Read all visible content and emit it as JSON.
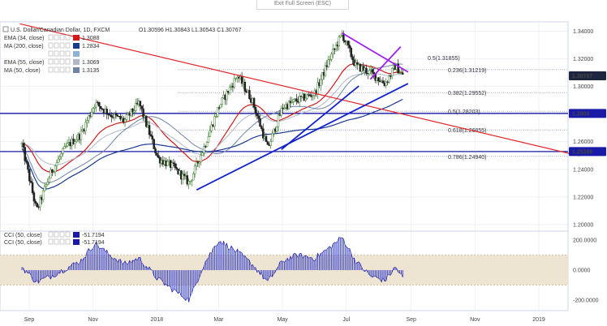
{
  "toolbar": {
    "exit_fullscreen_label": "Exit Full Screen (ESC)"
  },
  "header": {
    "symbol_title": "U.S. Dollar/Canadian Dollar, 1D, FXCM",
    "ohlc": "O1.30596  H1.30843  L1.30543  C1.30767"
  },
  "indicators": [
    {
      "label": "EMA (34, close)",
      "value": "1.3088",
      "color": "#d11a1a"
    },
    {
      "label": "MA (200, close)",
      "value": "1.2834",
      "color": "#1a3a8f"
    },
    {
      "label": "",
      "value": "",
      "color": "#8fb2d9"
    },
    {
      "label": "EMA (55, close)",
      "value": "1.3069",
      "color": "#b0b8c8"
    },
    {
      "label": "MA (50, close)",
      "value": "1.3135",
      "color": "#6e84a8"
    }
  ],
  "cci_legend": [
    {
      "label": "CCI (50, close)",
      "value": "-51.7194"
    },
    {
      "label": "CCI (50, close)",
      "value": "-51.7194"
    }
  ],
  "chart_data": {
    "type": "candlestick",
    "title": "U.S. Dollar/Canadian Dollar, 1D, FXCM",
    "x_ticks": [
      "Sep",
      "Nov",
      "2018",
      "Mar",
      "May",
      "Jul",
      "Sep",
      "Nov",
      "2019"
    ],
    "price_ticks": [
      1.34,
      1.32,
      1.3,
      1.28,
      1.26,
      1.24,
      1.22,
      1.2
    ],
    "price_ylim": [
      1.197,
      1.345
    ],
    "last_price": 1.30767,
    "horizontal_levels": [
      1.2805,
      1.25286
    ],
    "fibonacci": [
      {
        "label": "0.5(1.31855)",
        "value": 1.31855
      },
      {
        "label": "0.236(1.31219)",
        "value": 1.31219
      },
      {
        "label": "0.382(1.29552)",
        "value": 1.29552
      },
      {
        "label": "0.5(1.28203)",
        "value": 1.28203
      },
      {
        "label": "0.618(1.26855)",
        "value": 1.26855
      },
      {
        "label": "0.786(1.24940)",
        "value": 1.2494
      }
    ],
    "price_path": [
      [
        "Aug 25 2017",
        1.258
      ],
      [
        "Sep 8 2017",
        1.21
      ],
      [
        "Sep 22 2017",
        1.238
      ],
      [
        "Oct 6 2017",
        1.256
      ],
      [
        "Oct 20 2017",
        1.265
      ],
      [
        "Nov 3 2017",
        1.288
      ],
      [
        "Nov 17 2017",
        1.28
      ],
      [
        "Dec 1 2017",
        1.275
      ],
      [
        "Dec 15 2017",
        1.288
      ],
      [
        "Jan 2 2018",
        1.248
      ],
      [
        "Jan 16 2018",
        1.242
      ],
      [
        "Feb 1 2018",
        1.23
      ],
      [
        "Feb 15 2018",
        1.256
      ],
      [
        "Mar 1 2018",
        1.285
      ],
      [
        "Mar 19 2018",
        1.308
      ],
      [
        "Apr 2 2018",
        1.29
      ],
      [
        "Apr 17 2018",
        1.255
      ],
      [
        "May 1 2018",
        1.285
      ],
      [
        "May 15 2018",
        1.29
      ],
      [
        "Jun 1 2018",
        1.295
      ],
      [
        "Jun 15 2018",
        1.32
      ],
      [
        "Jun 27 2018",
        1.338
      ],
      [
        "Jul 10 2018",
        1.315
      ],
      [
        "Jul 24 2018",
        1.31
      ],
      [
        "Aug 7 2018",
        1.302
      ],
      [
        "Aug 17 2018",
        1.315
      ],
      [
        "Aug 24 2018",
        1.3077
      ]
    ],
    "trend_lines": [
      {
        "color": "#e0262b",
        "from": [
          "Aug 23 2017",
          1.3454
        ],
        "to": [
          "Feb 9 2019",
          1.2497
        ]
      },
      {
        "color": "#1122cc",
        "from": [
          "Feb 8 2018",
          1.2251
        ],
        "to": [
          "Aug 29 2018",
          1.3021
        ]
      },
      {
        "color": "#1122cc",
        "from": [
          "Apr 30 2018",
          1.2544
        ],
        "to": [
          "Jul 13 2018",
          1.3003
        ]
      },
      {
        "color": "#a020f0",
        "from": [
          "Jun 27 2018",
          1.3387
        ],
        "to": [
          "Aug 29 2018",
          1.3105
        ]
      },
      {
        "color": "#a020f0",
        "from": [
          "Jul 24 2018",
          1.3052
        ],
        "to": [
          "Aug 22 2018",
          1.3288
        ]
      }
    ],
    "cci": {
      "label": "CCI (50, close)",
      "value": -51.7194,
      "ticks": [
        200,
        0,
        -200
      ],
      "tick_labels": [
        "200.0000",
        "0.0000",
        "-200.0000"
      ],
      "ylim": [
        -260,
        250
      ],
      "band": [
        -100,
        100
      ],
      "path": [
        [
          "Aug 25 2017",
          20
        ],
        [
          "Sep 8 2017",
          -80
        ],
        [
          "Sep 22 2017",
          -40
        ],
        [
          "Oct 6 2017",
          10
        ],
        [
          "Oct 20 2017",
          60
        ],
        [
          "Nov 3 2017",
          180
        ],
        [
          "Nov 17 2017",
          100
        ],
        [
          "Dec 1 2017",
          40
        ],
        [
          "Dec 15 2017",
          80
        ],
        [
          "Jan 2 2018",
          -60
        ],
        [
          "Jan 16 2018",
          -130
        ],
        [
          "Feb 1 2018",
          -200
        ],
        [
          "Feb 15 2018",
          40
        ],
        [
          "Mar 1 2018",
          200
        ],
        [
          "Mar 19 2018",
          120
        ],
        [
          "Apr 2 2018",
          40
        ],
        [
          "Apr 17 2018",
          -80
        ],
        [
          "May 1 2018",
          60
        ],
        [
          "May 15 2018",
          100
        ],
        [
          "Jun 1 2018",
          80
        ],
        [
          "Jun 15 2018",
          150
        ],
        [
          "Jun 27 2018",
          220
        ],
        [
          "Jul 10 2018",
          60
        ],
        [
          "Jul 24 2018",
          -40
        ],
        [
          "Aug 7 2018",
          -70
        ],
        [
          "Aug 17 2018",
          20
        ],
        [
          "Aug 24 2018",
          -52
        ]
      ]
    }
  }
}
